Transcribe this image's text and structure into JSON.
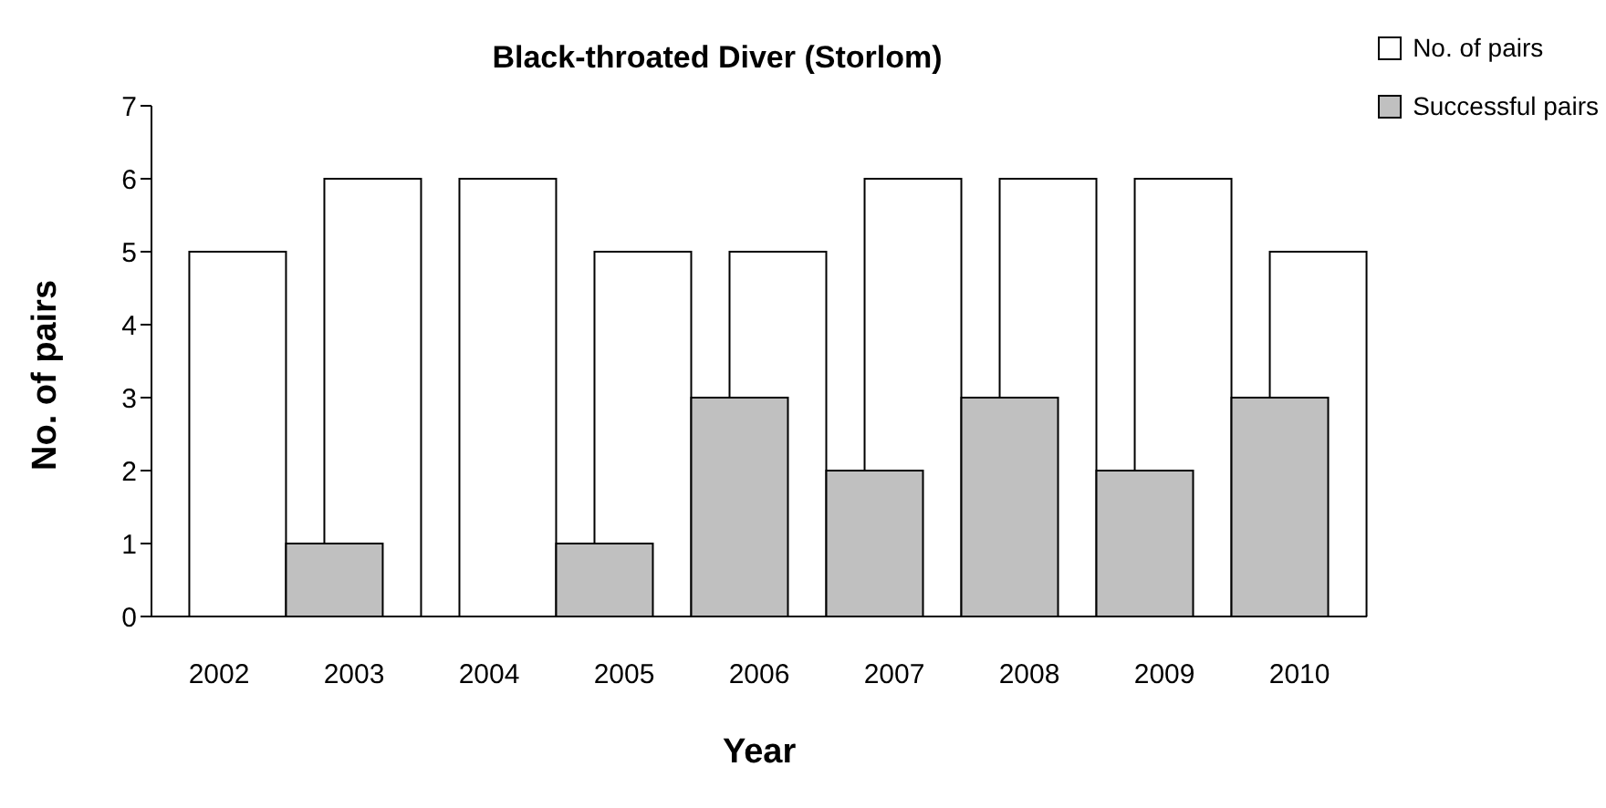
{
  "chart_data": {
    "type": "bar",
    "title": "Black-throated Diver (Storlom)",
    "xlabel": "Year",
    "ylabel": "No. of pairs",
    "categories": [
      "2002",
      "2003",
      "2004",
      "2005",
      "2006",
      "2007",
      "2008",
      "2009",
      "2010"
    ],
    "series": [
      {
        "name": "No. of pairs",
        "color": "#ffffff",
        "values": [
          5,
          6,
          6,
          5,
          5,
          6,
          6,
          6,
          5
        ]
      },
      {
        "name": "Successful pairs",
        "color": "#c0c0c0",
        "values": [
          0,
          1,
          0,
          1,
          3,
          2,
          3,
          2,
          3
        ]
      }
    ],
    "ylim": [
      0,
      7
    ],
    "yticks": [
      0,
      1,
      2,
      3,
      4,
      5,
      6,
      7
    ],
    "grid": false,
    "legend": "top right"
  }
}
